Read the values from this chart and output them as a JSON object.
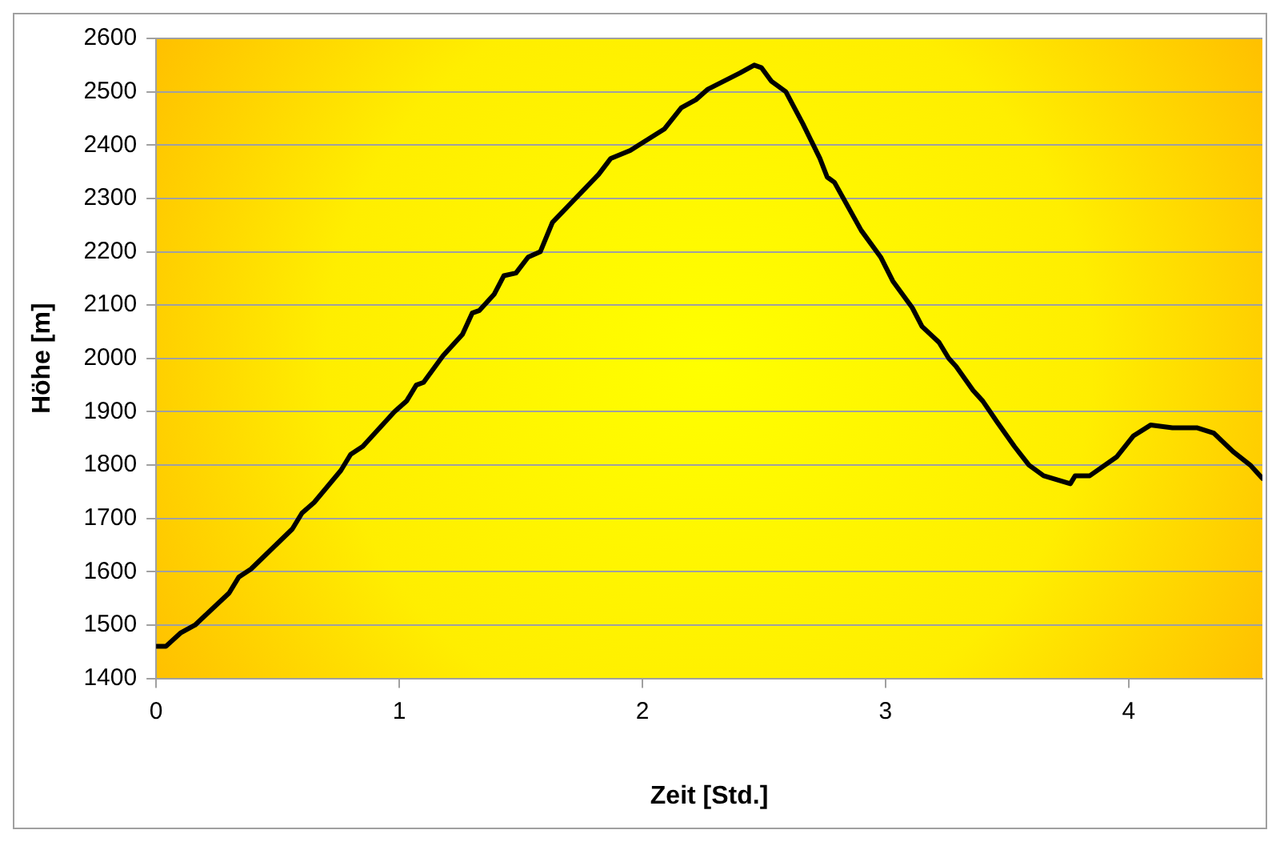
{
  "chart_data": {
    "type": "line",
    "xlabel": "Zeit [Std.]",
    "ylabel": "Höhe [m]",
    "x": [
      0,
      0.04,
      0.1,
      0.16,
      0.3,
      0.34,
      0.39,
      0.56,
      0.6,
      0.65,
      0.76,
      0.8,
      0.85,
      0.98,
      1.03,
      1.07,
      1.1,
      1.18,
      1.26,
      1.3,
      1.33,
      1.39,
      1.43,
      1.48,
      1.53,
      1.58,
      1.63,
      1.82,
      1.87,
      1.95,
      2.09,
      2.16,
      2.22,
      2.27,
      2.4,
      2.46,
      2.49,
      2.53,
      2.59,
      2.66,
      2.73,
      2.76,
      2.79,
      2.9,
      2.98,
      3.03,
      3.11,
      3.15,
      3.22,
      3.26,
      3.29,
      3.36,
      3.4,
      3.46,
      3.53,
      3.59,
      3.65,
      3.76,
      3.78,
      3.84,
      3.95,
      4.02,
      4.09,
      4.18,
      4.28,
      4.35,
      4.43,
      4.5,
      4.55
    ],
    "series": [
      {
        "color": "#000000",
        "values": [
          1460,
          1460,
          1485,
          1500,
          1560,
          1590,
          1605,
          1680,
          1710,
          1730,
          1790,
          1820,
          1835,
          1900,
          1920,
          1950,
          1955,
          2005,
          2045,
          2085,
          2090,
          2120,
          2155,
          2160,
          2190,
          2200,
          2255,
          2345,
          2375,
          2390,
          2430,
          2470,
          2485,
          2505,
          2535,
          2550,
          2545,
          2520,
          2500,
          2440,
          2375,
          2340,
          2330,
          2240,
          2190,
          2145,
          2095,
          2060,
          2030,
          2000,
          1985,
          1940,
          1920,
          1880,
          1835,
          1800,
          1780,
          1765,
          1780,
          1780,
          1815,
          1855,
          1875,
          1870,
          1870,
          1860,
          1825,
          1800,
          1775
        ]
      }
    ],
    "xlim": [
      0,
      4.55
    ],
    "xticks": [
      0,
      1,
      2,
      3,
      4
    ],
    "ylim": [
      1400,
      2600
    ],
    "yticks": [
      1400,
      1500,
      1600,
      1700,
      1800,
      1900,
      2000,
      2100,
      2200,
      2300,
      2400,
      2500,
      2600
    ],
    "grid": "y",
    "legend": false,
    "marker": "none",
    "line_style": "solid"
  }
}
